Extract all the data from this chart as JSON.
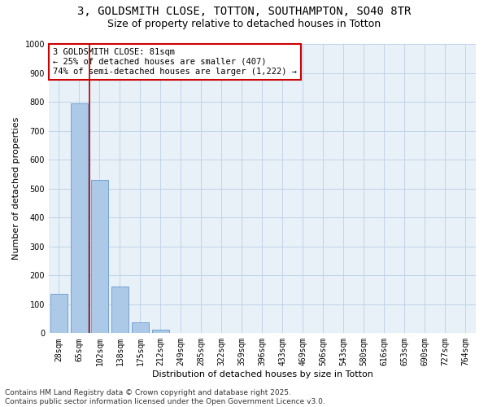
{
  "title_line1": "3, GOLDSMITH CLOSE, TOTTON, SOUTHAMPTON, SO40 8TR",
  "title_line2": "Size of property relative to detached houses in Totton",
  "xlabel": "Distribution of detached houses by size in Totton",
  "ylabel": "Number of detached properties",
  "categories": [
    "28sqm",
    "65sqm",
    "102sqm",
    "138sqm",
    "175sqm",
    "212sqm",
    "249sqm",
    "285sqm",
    "322sqm",
    "359sqm",
    "396sqm",
    "433sqm",
    "469sqm",
    "506sqm",
    "543sqm",
    "580sqm",
    "616sqm",
    "653sqm",
    "690sqm",
    "727sqm",
    "764sqm"
  ],
  "values": [
    135,
    795,
    530,
    160,
    38,
    13,
    0,
    0,
    0,
    0,
    0,
    0,
    0,
    0,
    0,
    0,
    0,
    0,
    0,
    0,
    0
  ],
  "bar_color": "#adc9e8",
  "bar_edge_color": "#6699cc",
  "ylim": [
    0,
    1000
  ],
  "yticks": [
    0,
    100,
    200,
    300,
    400,
    500,
    600,
    700,
    800,
    900,
    1000
  ],
  "vline_x": 1.5,
  "vline_color": "#aa0000",
  "annotation_text": "3 GOLDSMITH CLOSE: 81sqm\n← 25% of detached houses are smaller (407)\n74% of semi-detached houses are larger (1,222) →",
  "annotation_box_color": "#cc0000",
  "annotation_bg": "#ffffff",
  "grid_color": "#c0d4e8",
  "bg_color": "#e8f0f8",
  "footer_line1": "Contains HM Land Registry data © Crown copyright and database right 2025.",
  "footer_line2": "Contains public sector information licensed under the Open Government Licence v3.0.",
  "title_fontsize": 10,
  "subtitle_fontsize": 9,
  "axis_label_fontsize": 8,
  "tick_fontsize": 7,
  "annotation_fontsize": 7.5,
  "footer_fontsize": 6.5
}
